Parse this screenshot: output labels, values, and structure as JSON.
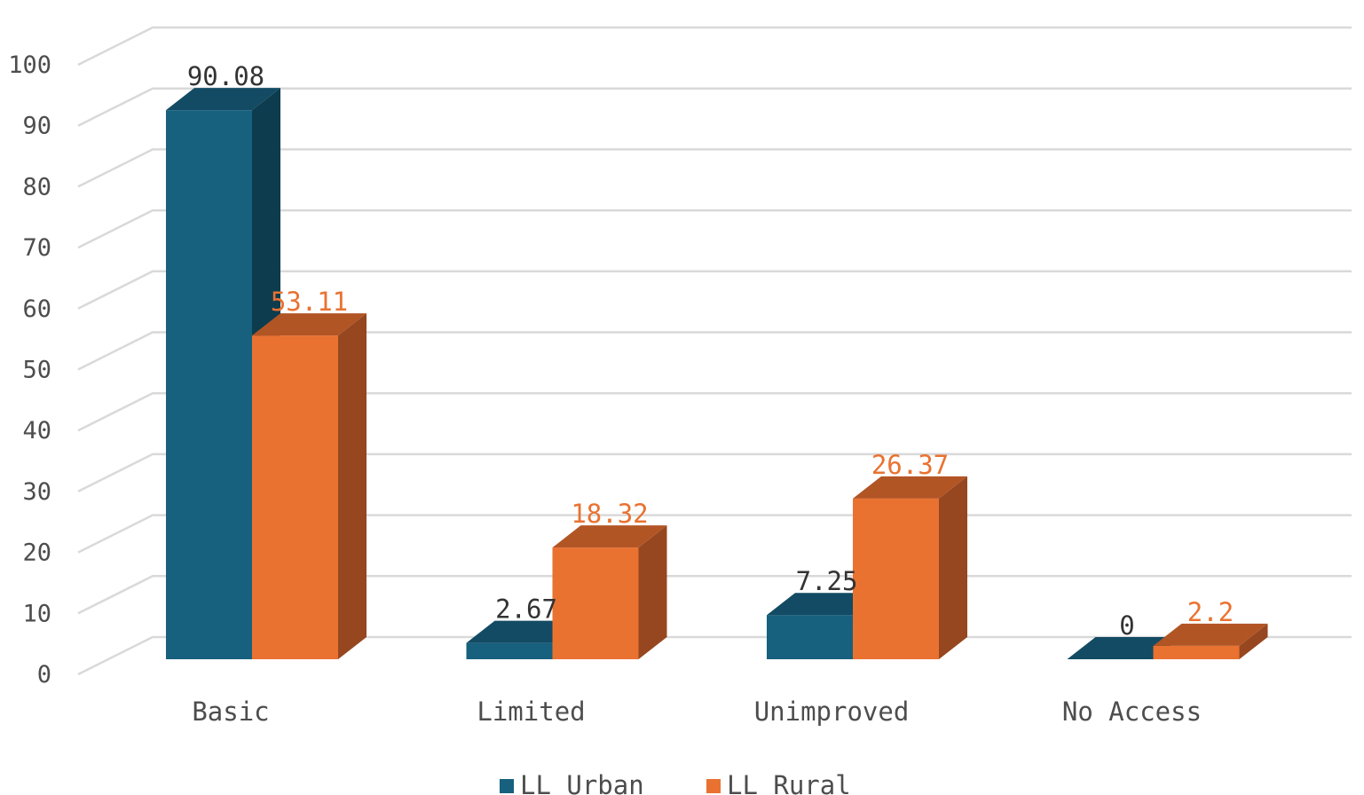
{
  "chart_data": {
    "type": "bar",
    "categories": [
      "Basic",
      "Limited",
      "Unimproved",
      "No Access"
    ],
    "series": [
      {
        "name": "LL Urban",
        "values": [
          90.08,
          2.67,
          7.25,
          0
        ],
        "labels": [
          "90.08",
          "2.67",
          "7.25",
          "0"
        ],
        "color": "#17607e",
        "side_color": "#0d3c4f",
        "top_color": "#124b63",
        "label_color": "#333333"
      },
      {
        "name": "LL Rural",
        "values": [
          53.11,
          18.32,
          26.37,
          2.2
        ],
        "labels": [
          "53.11",
          "18.32",
          "26.37",
          "2.2"
        ],
        "color": "#e97231",
        "side_color": "#964720",
        "top_color": "#b25525",
        "label_color": "#e97231"
      }
    ],
    "yticks": [
      "0",
      "10",
      "20",
      "30",
      "40",
      "50",
      "60",
      "70",
      "80",
      "90",
      "100"
    ],
    "ylim": [
      0,
      100
    ],
    "grid": true,
    "legend": "bottom",
    "three_d": true
  }
}
